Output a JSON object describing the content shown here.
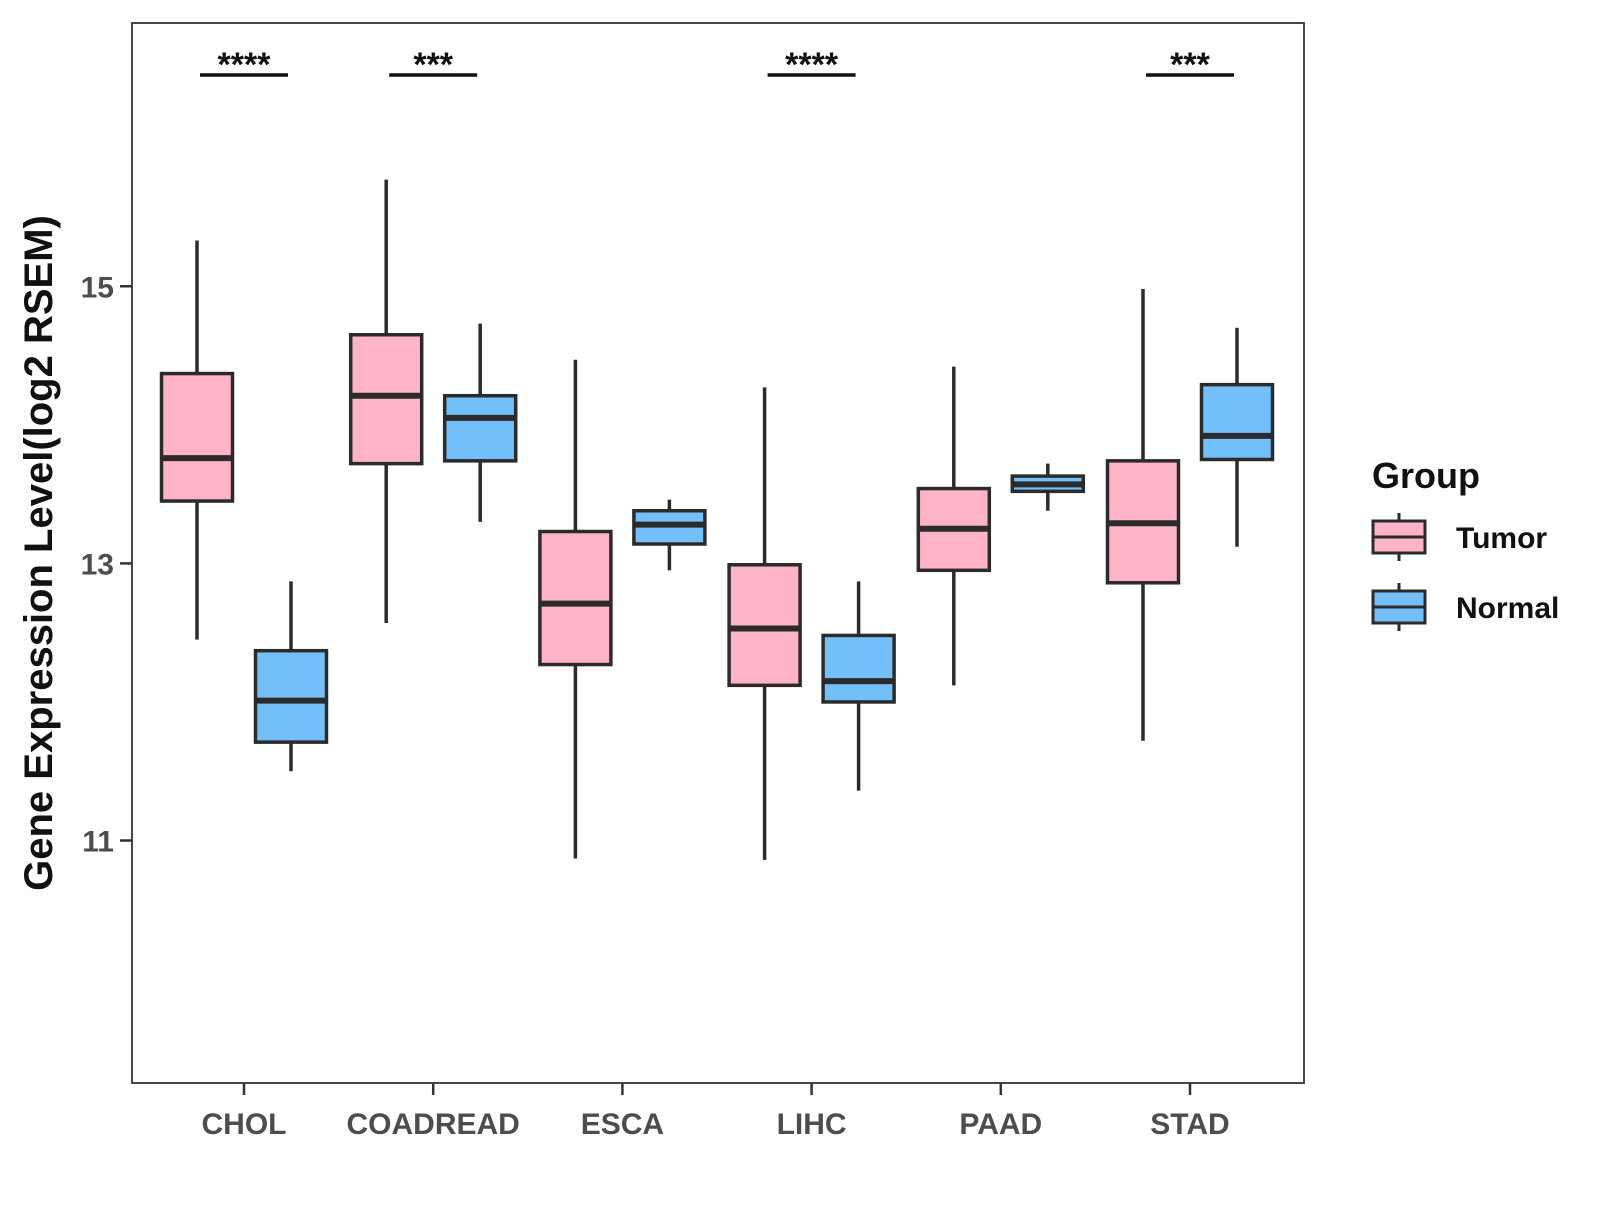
{
  "chart_data": {
    "type": "boxplot",
    "title": "",
    "xlabel": "",
    "ylabel": "Gene Expression Level(log2 RSEM)",
    "ylim": [
      9.25,
      16.9
    ],
    "yticks": [
      11,
      13,
      15
    ],
    "ytick_labels": [
      "11",
      "13",
      "15"
    ],
    "categories": [
      "CHOL",
      "COADREAD",
      "ESCA",
      "LIHC",
      "PAAD",
      "STAD"
    ],
    "legend": {
      "title": "Group",
      "position": "right",
      "entries": [
        "Tumor",
        "Normal"
      ]
    },
    "series": [
      {
        "name": "Tumor",
        "color": "#FFB3C6",
        "boxes": [
          {
            "category": "CHOL",
            "whisker_low": 12.45,
            "q1": 13.45,
            "median": 13.76,
            "q3": 14.37,
            "whisker_high": 15.33
          },
          {
            "category": "COADREAD",
            "whisker_low": 12.57,
            "q1": 13.72,
            "median": 14.21,
            "q3": 14.65,
            "whisker_high": 15.77
          },
          {
            "category": "ESCA",
            "whisker_low": 10.87,
            "q1": 12.27,
            "median": 12.71,
            "q3": 13.23,
            "whisker_high": 14.47
          },
          {
            "category": "LIHC",
            "whisker_low": 10.86,
            "q1": 12.12,
            "median": 12.53,
            "q3": 12.99,
            "whisker_high": 14.27
          },
          {
            "category": "PAAD",
            "whisker_low": 12.12,
            "q1": 12.95,
            "median": 13.25,
            "q3": 13.54,
            "whisker_high": 14.42
          },
          {
            "category": "STAD",
            "whisker_low": 11.72,
            "q1": 12.86,
            "median": 13.29,
            "q3": 13.74,
            "whisker_high": 14.98
          }
        ]
      },
      {
        "name": "Normal",
        "color": "#73BFFA",
        "boxes": [
          {
            "category": "CHOL",
            "whisker_low": 11.5,
            "q1": 11.71,
            "median": 12.01,
            "q3": 12.37,
            "whisker_high": 12.87
          },
          {
            "category": "COADREAD",
            "whisker_low": 13.3,
            "q1": 13.74,
            "median": 14.05,
            "q3": 14.21,
            "whisker_high": 14.73
          },
          {
            "category": "ESCA",
            "whisker_low": 12.95,
            "q1": 13.14,
            "median": 13.28,
            "q3": 13.38,
            "whisker_high": 13.46
          },
          {
            "category": "LIHC",
            "whisker_low": 11.36,
            "q1": 12.0,
            "median": 12.15,
            "q3": 12.48,
            "whisker_high": 12.87
          },
          {
            "category": "PAAD",
            "whisker_low": 13.38,
            "q1": 13.52,
            "median": 13.57,
            "q3": 13.63,
            "whisker_high": 13.72
          },
          {
            "category": "STAD",
            "whisker_low": 13.12,
            "q1": 13.75,
            "median": 13.92,
            "q3": 14.29,
            "whisker_high": 14.7
          }
        ]
      }
    ],
    "annotations": [
      {
        "category": "CHOL",
        "label": "****"
      },
      {
        "category": "COADREAD",
        "label": "***"
      },
      {
        "category": "LIHC",
        "label": "****"
      },
      {
        "category": "STAD",
        "label": "***"
      }
    ]
  }
}
